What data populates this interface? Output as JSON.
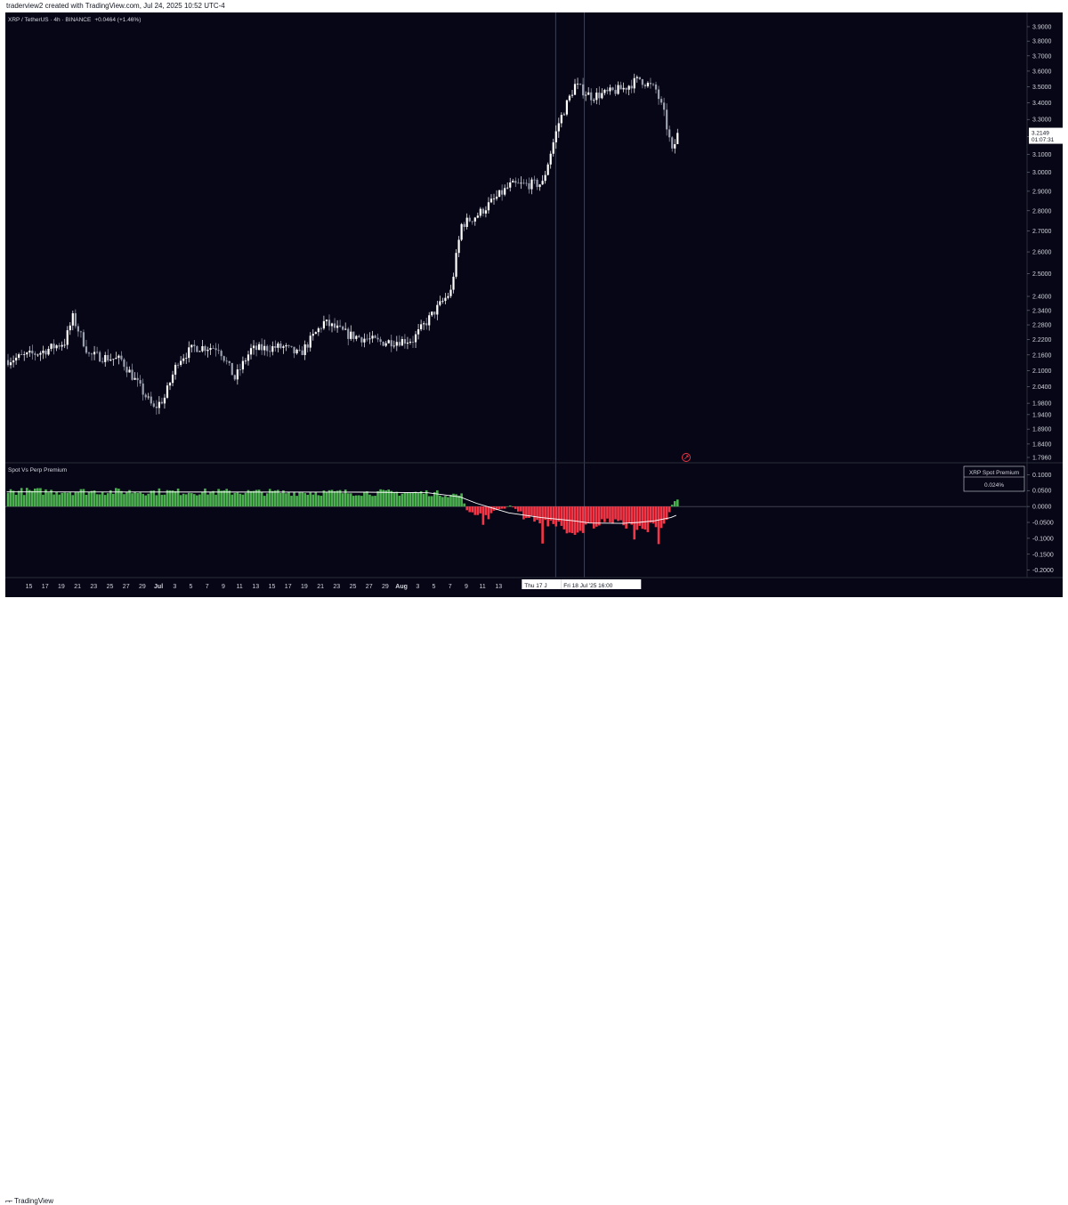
{
  "header": {
    "attribution": "traderview2 created with TradingView.com, Jul 24, 2025 10:52 UTC-4"
  },
  "footer": {
    "logo": "TradingView"
  },
  "colors": {
    "background": "#070617",
    "candle_up": "#ffffff",
    "candle_down": "#9a9fae",
    "premium_positive": "#4caf50",
    "premium_negative": "#f23645",
    "premium_ma": "#ffffff",
    "crosshair": "#4a4e62",
    "axis_text": "#d1d4dc"
  },
  "chart_data": [
    {
      "type": "candlestick",
      "title": "XRP / TetherUS · 4h · BINANCE",
      "change_text": "+0.0464 (+1.46%)",
      "last_price_label": "3.2149",
      "countdown_label": "01:07:31",
      "y_ticks": [
        "3.9000",
        "3.8000",
        "3.7000",
        "3.6000",
        "3.5000",
        "3.4000",
        "3.3000",
        "3.2000",
        "3.1000",
        "3.0000",
        "2.9000",
        "2.8000",
        "2.7000",
        "2.6000",
        "2.5000",
        "2.4000",
        "2.3400",
        "2.2800",
        "2.2200",
        "2.1600",
        "2.1000",
        "2.0400",
        "1.9800",
        "1.9400",
        "1.8900",
        "1.8400",
        "1.7960"
      ],
      "y_scale": "log",
      "ylim": [
        1.796,
        3.95
      ],
      "x_ticks": [
        "15",
        "17",
        "19",
        "21",
        "23",
        "25",
        "27",
        "29",
        "Jul",
        "3",
        "5",
        "7",
        "9",
        "11",
        "13",
        "15",
        "17",
        "19",
        "21",
        "23",
        "25",
        "27",
        "29",
        "Aug",
        "3",
        "5",
        "7",
        "9",
        "11",
        "13"
      ],
      "crosshair_labels": [
        "Thu 17 J",
        "Fri 18 Jul '25   16:00"
      ],
      "close_path": {
        "x": [
          "Jun 13 00:00",
          "Jun 15 00:00",
          "Jun 16 12:00",
          "Jun 17 00:00",
          "Jun 18 00:00",
          "Jun 20 00:00",
          "Jun 21 00:00",
          "Jun 22 00:00",
          "Jun 22 16:00",
          "Jun 23 12:00",
          "Jun 24 12:00",
          "Jun 26 00:00",
          "Jun 27 00:00",
          "Jun 28 00:00",
          "Jun 29 12:00",
          "Jun 30 00:00",
          "Jul 01 00:00",
          "Jul 02 12:00",
          "Jul 04 00:00",
          "Jul 06 00:00",
          "Jul 08 00:00",
          "Jul 09 12:00",
          "Jul 10 08:00",
          "Jul 11 00:00",
          "Jul 12 00:00",
          "Jul 14 00:00",
          "Jul 16 00:00",
          "Jul 17 00:00",
          "Jul 18 00:00",
          "Jul 19 00:00",
          "Jul 20 00:00",
          "Jul 21 00:00",
          "Jul 22 00:00",
          "Jul 23 00:00",
          "Jul 23 12:00",
          "Jul 24 00:00",
          "Jul 24 08:00"
        ],
        "y": [
          2.14,
          2.17,
          2.21,
          2.31,
          2.16,
          2.14,
          2.05,
          1.96,
          2.0,
          2.14,
          2.19,
          2.19,
          2.07,
          2.18,
          2.19,
          2.19,
          2.16,
          2.29,
          2.24,
          2.21,
          2.22,
          2.35,
          2.42,
          2.73,
          2.78,
          2.93,
          2.94,
          3.28,
          3.51,
          3.44,
          3.46,
          3.49,
          3.55,
          3.48,
          3.33,
          3.11,
          3.21
        ]
      }
    },
    {
      "type": "bar",
      "title": "Spot Vs Perp Premium",
      "legend_title": "XRP Spot Premium",
      "legend_value": "0.024%",
      "y_ticks": [
        "0.1000",
        "0.0500",
        "0.0000",
        "-0.0500",
        "-0.1000",
        "-0.1500",
        "-0.2000"
      ],
      "ylim": [
        -0.215,
        0.115
      ],
      "profile": {
        "x": [
          "Jun 13 00:00",
          "Jun 20 00:00",
          "Jun 28 00:00",
          "Jul 05 00:00",
          "Jul 09 00:00",
          "Jul 11 00:00",
          "Jul 11 08:00",
          "Jul 12 00:00",
          "Jul 13 00:00",
          "Jul 14 00:00",
          "Jul 15 00:00",
          "Jul 16 00:00",
          "Jul 17 00:00",
          "Jul 18 00:00",
          "Jul 19 00:00",
          "Jul 20 00:00",
          "Jul 21 00:00",
          "Jul 22 00:00",
          "Jul 23 00:00",
          "Jul 23 16:00",
          "Jul 24 00:00",
          "Jul 24 08:00"
        ],
        "y": [
          0.048,
          0.047,
          0.045,
          0.044,
          0.043,
          0.035,
          -0.01,
          -0.03,
          -0.015,
          0.003,
          -0.03,
          -0.05,
          -0.06,
          -0.08,
          -0.06,
          -0.05,
          -0.055,
          -0.065,
          -0.07,
          -0.04,
          0.005,
          0.024
        ]
      },
      "moving_average": {
        "x": [
          "Jun 13 00:00",
          "Jul 05 00:00",
          "Jul 09 00:00",
          "Jul 11 00:00",
          "Jul 12 00:00",
          "Jul 13 00:00",
          "Jul 14 00:00",
          "Jul 16 00:00",
          "Jul 18 00:00",
          "Jul 19 00:00",
          "Jul 21 00:00",
          "Jul 22 00:00",
          "Jul 23 00:00",
          "Jul 24 00:00",
          "Jul 24 08:00"
        ],
        "y": [
          0.046,
          0.045,
          0.043,
          0.03,
          0.01,
          -0.005,
          -0.02,
          -0.035,
          -0.045,
          -0.052,
          -0.053,
          -0.05,
          -0.045,
          -0.035,
          -0.028
        ]
      }
    }
  ]
}
